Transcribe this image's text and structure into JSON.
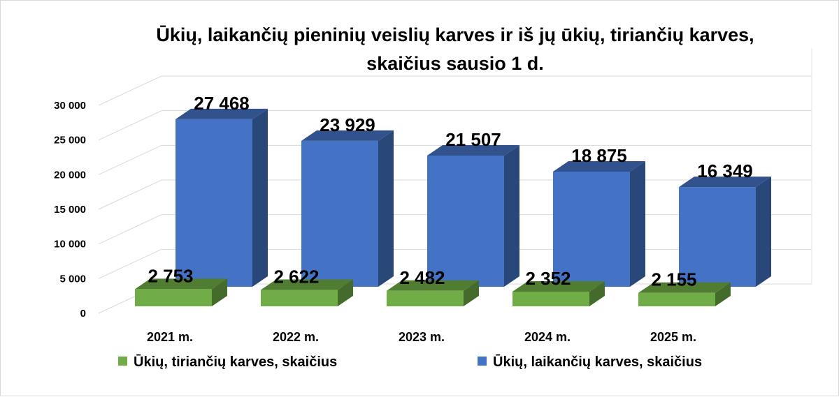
{
  "chart_data": {
    "type": "bar",
    "title": "Ūkių, laikančių pieninių veislių karves ir iš jų ūkių, tiriančių karves, skaičius sausio 1 d.",
    "title_lines": [
      "Ūkių, laikančių pieninių veislių karves ir iš jų ūkių, tiriančių karves,",
      "skaičius sausio 1 d."
    ],
    "categories": [
      "2021 m.",
      "2022 m.",
      "2023 m.",
      "2024 m.",
      "2025 m."
    ],
    "series": [
      {
        "name": "Ūkių, tiriančių karves, skaičius",
        "values": [
          2753,
          2622,
          2482,
          2352,
          2155
        ],
        "labels": [
          "2 753",
          "2 622",
          "2 482",
          "2 352",
          "2 155"
        ],
        "color": "#70ad47"
      },
      {
        "name": "Ūkių, laikančių karves, skaičius",
        "values": [
          27468,
          23929,
          21507,
          18875,
          16349
        ],
        "labels": [
          "27 468",
          "23 929",
          "21 507",
          "18 875",
          "16 349"
        ],
        "color": "#4472c4"
      }
    ],
    "y_ticks": [
      "0",
      "5 000",
      "10 000",
      "15 000",
      "20 000",
      "25 000",
      "30 000"
    ],
    "ylim": [
      0,
      30000
    ],
    "grid": true,
    "legend_position": "bottom",
    "chart_style": "3d-clustered-column"
  }
}
